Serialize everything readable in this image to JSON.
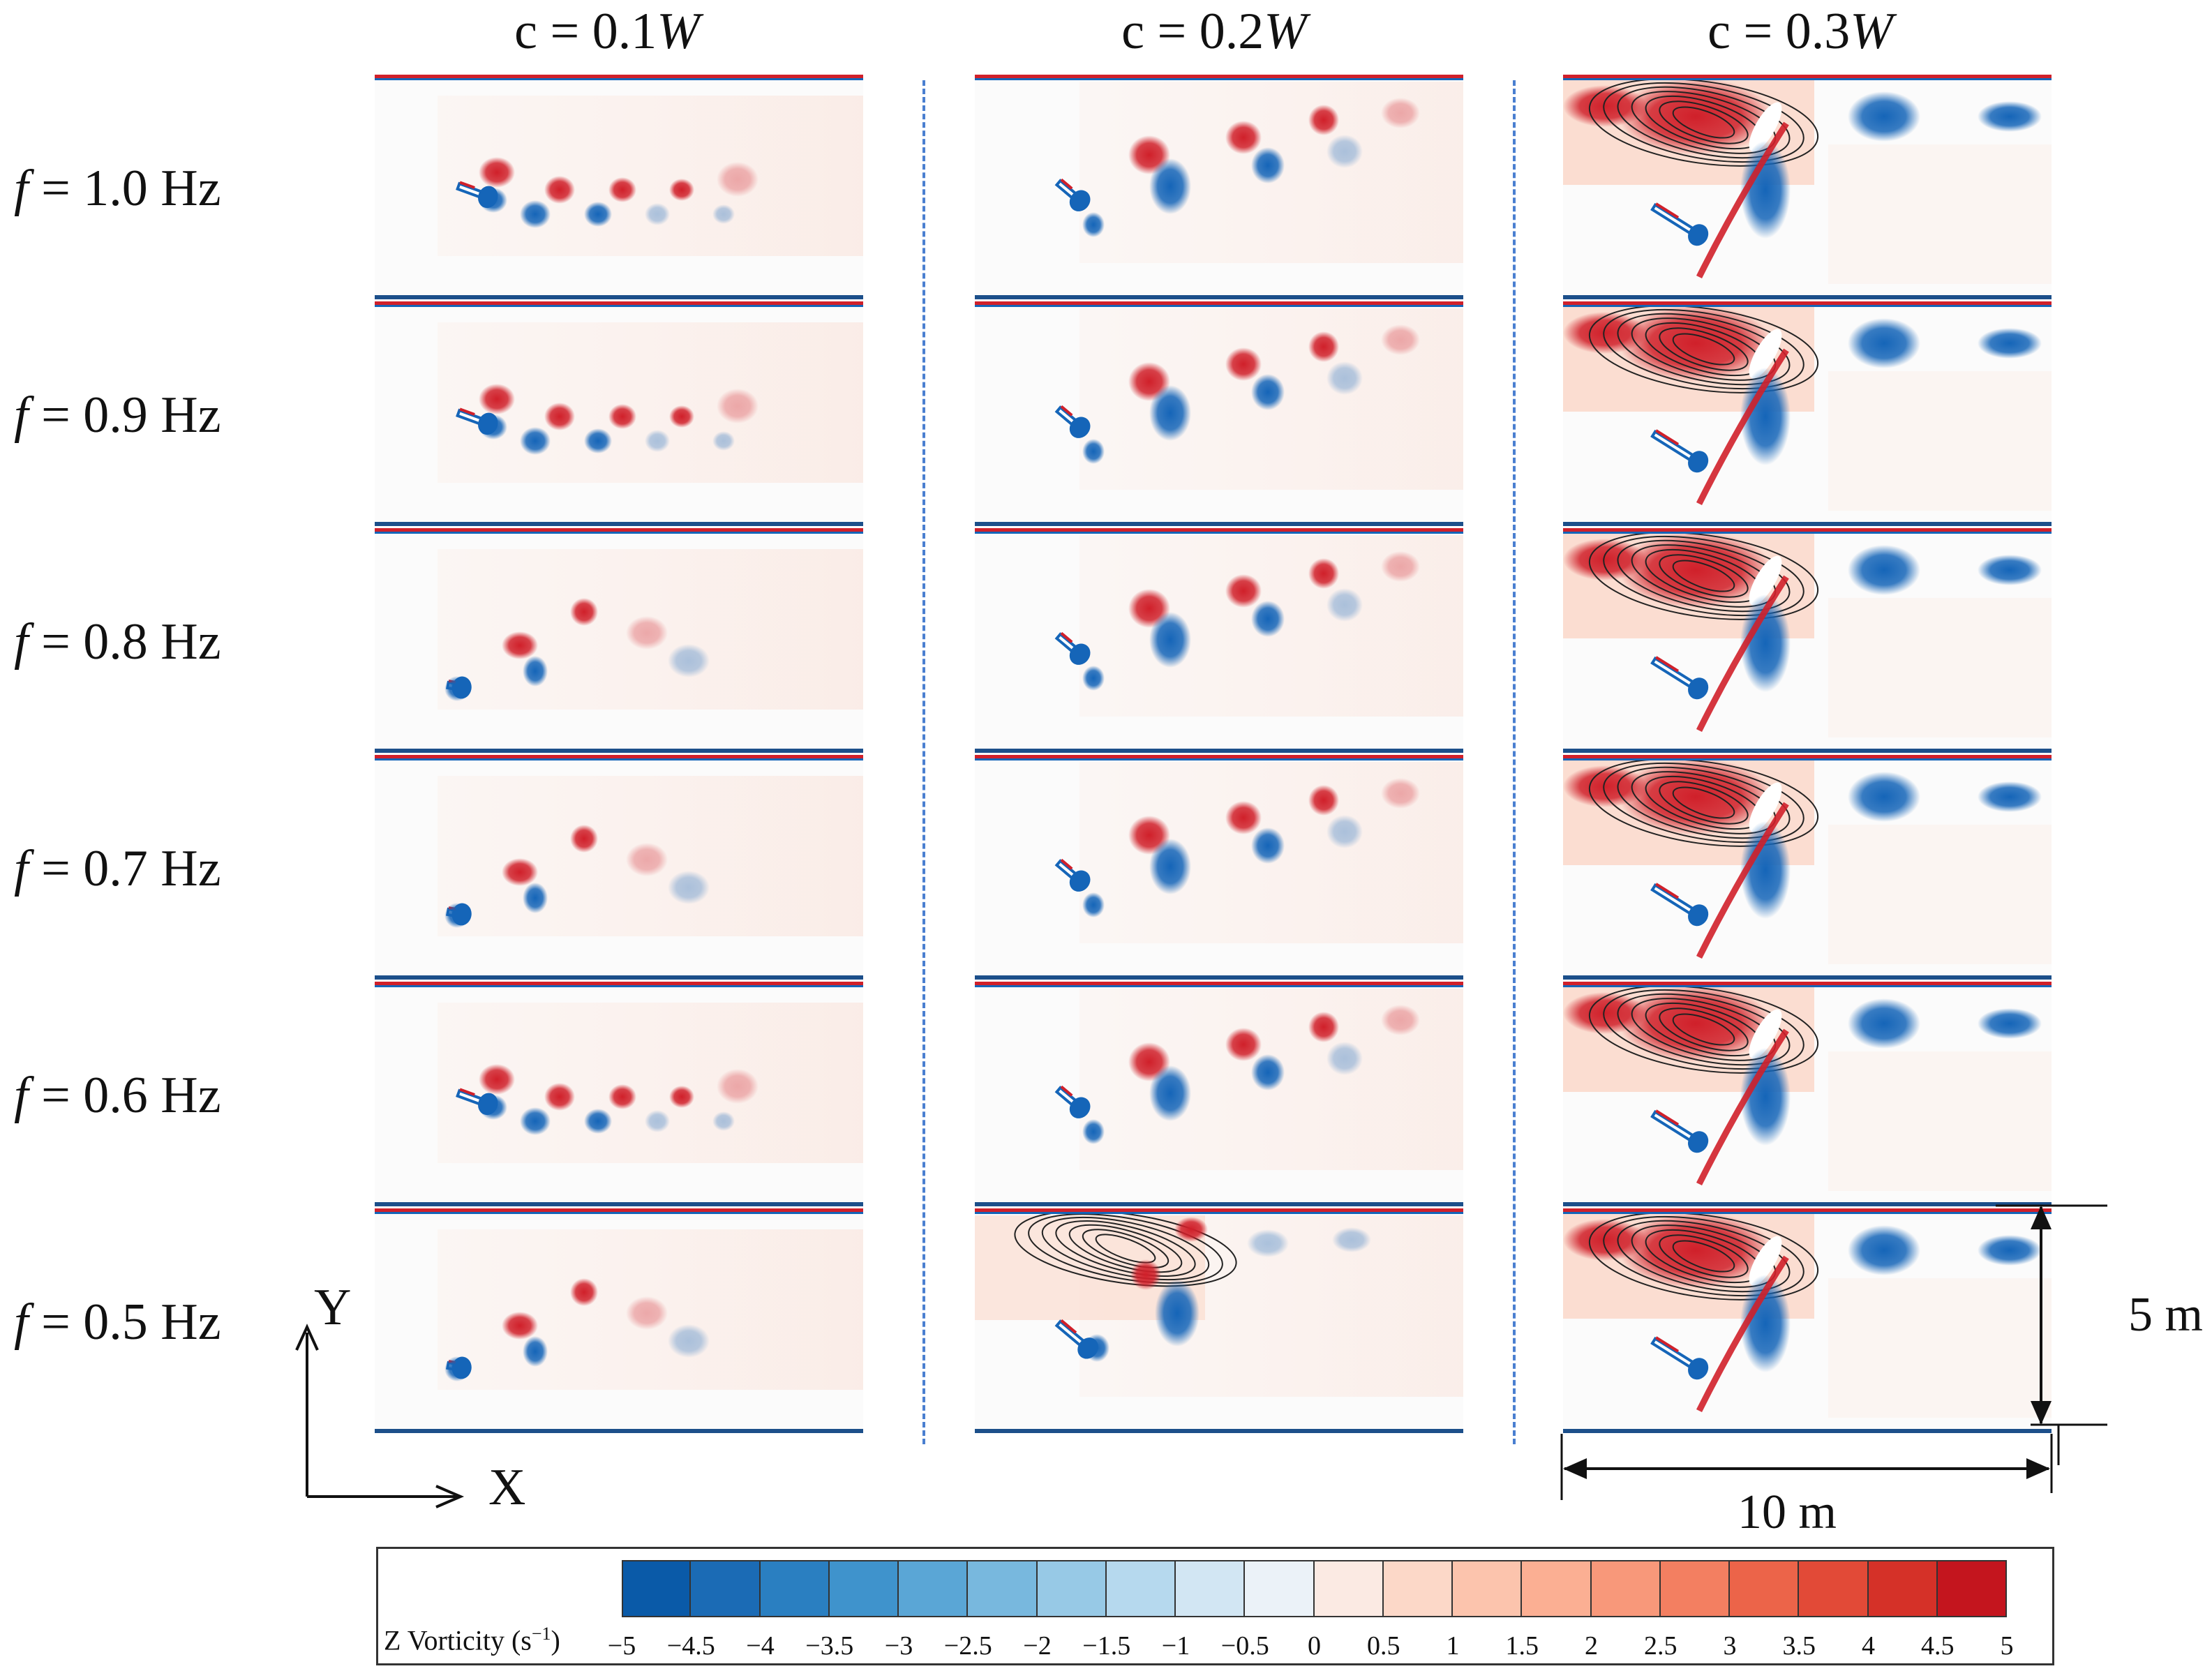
{
  "columns": [
    {
      "label_prefix": "c = 0.1",
      "label_var": "W"
    },
    {
      "label_prefix": "c = 0.2",
      "label_var": "W"
    },
    {
      "label_prefix": "c = 0.3",
      "label_var": "W"
    }
  ],
  "rows": [
    {
      "var": "f",
      "text": " = 1.0 Hz"
    },
    {
      "var": "f",
      "text": " = 0.9 Hz"
    },
    {
      "var": "f",
      "text": " = 0.8 Hz"
    },
    {
      "var": "f",
      "text": " = 0.7 Hz"
    },
    {
      "var": "f",
      "text": " = 0.6 Hz"
    },
    {
      "var": "f",
      "text": " = 0.5 Hz"
    }
  ],
  "axes": {
    "y_label": "Y",
    "x_label": "X"
  },
  "dimensions": {
    "height": "5 m",
    "width": "10 m"
  },
  "colorbar": {
    "title": "Z Vorticity (s",
    "title_sup": "−1",
    "title_end": ")",
    "ticks": [
      "−5",
      "−4.5",
      "−4",
      "−3.5",
      "−3",
      "−2.5",
      "−2",
      "−1.5",
      "−1",
      "−0.5",
      "0",
      "0.5",
      "1",
      "1.5",
      "2",
      "2.5",
      "3",
      "3.5",
      "4",
      "4.5",
      "5"
    ],
    "colors": [
      "#0a5aa8",
      "#1b6bb5",
      "#2a7fc1",
      "#3f93cc",
      "#5aa6d6",
      "#78b8de",
      "#97c9e6",
      "#b6d9ee",
      "#d2e6f3",
      "#ebf2f8",
      "#fbeae3",
      "#fcd8c8",
      "#fcc4ad",
      "#fbaf93",
      "#f8987a",
      "#f37f61",
      "#ec6449",
      "#e24a37",
      "#d53128",
      "#c4151e"
    ]
  },
  "colors": {
    "blue": "#1565b8",
    "red": "#d0202a",
    "dash": "#4a7fd0"
  }
}
